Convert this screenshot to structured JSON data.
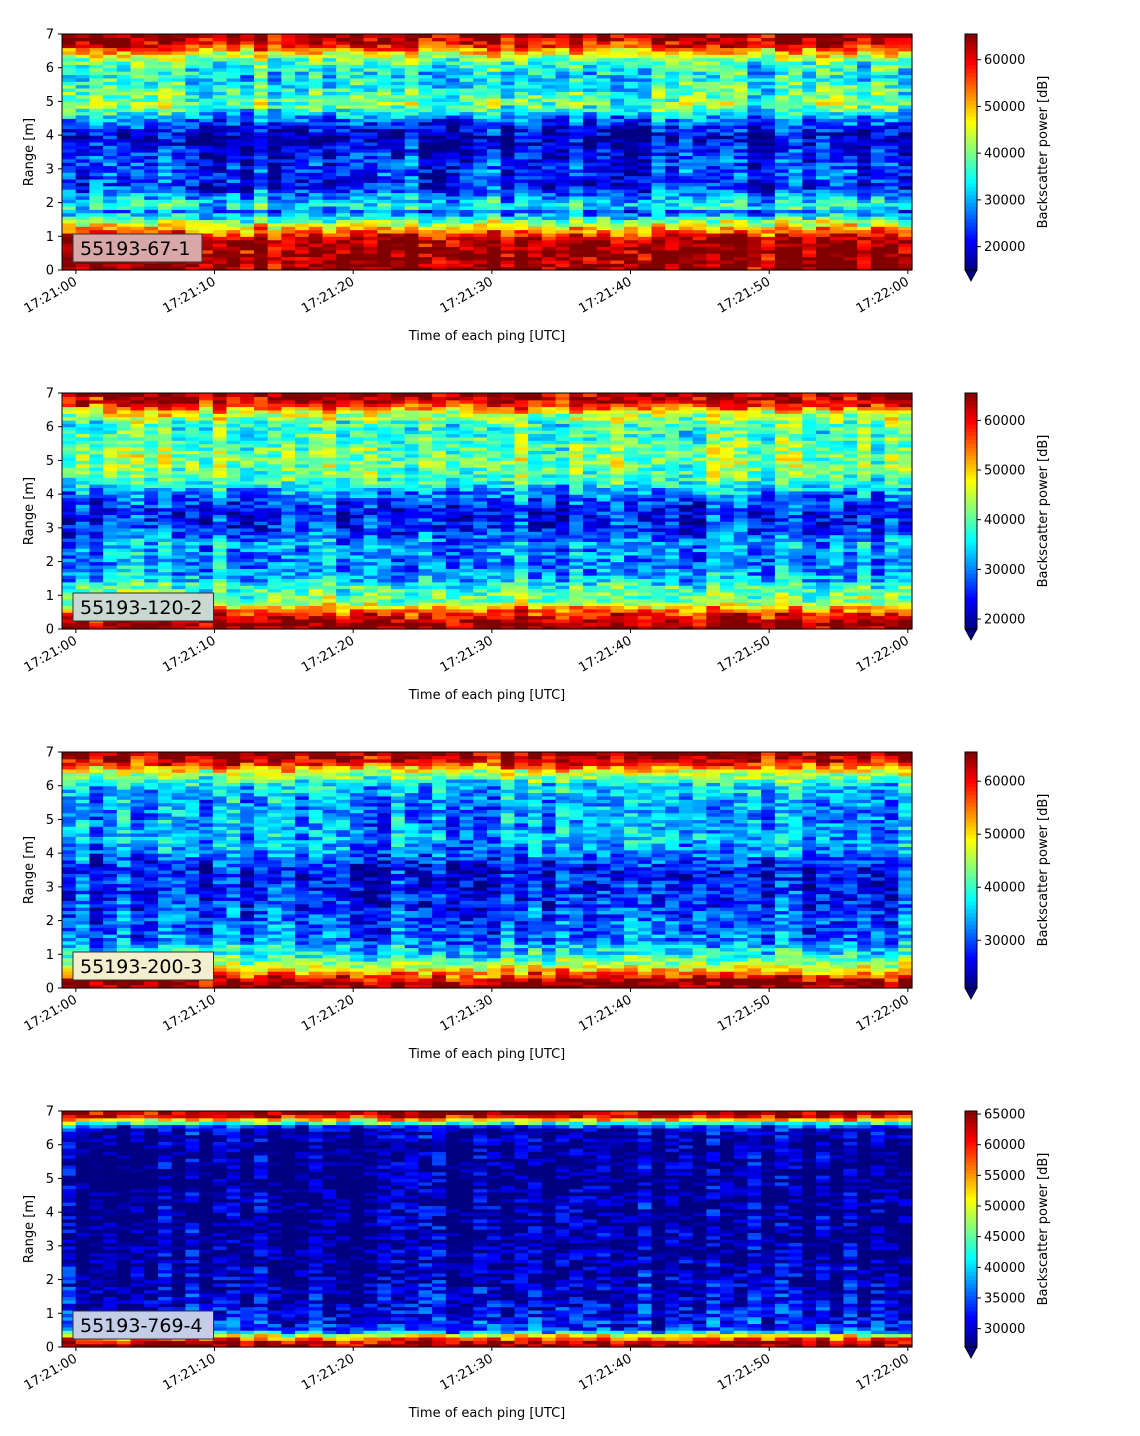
{
  "figure": {
    "xlabel": "Time of each ping [UTC]",
    "ylabel": "Range [m]",
    "colorbar_label": "Backscatter power [dB]"
  },
  "chart_data": [
    {
      "type": "heatmap",
      "label": "55193-67-1",
      "label_color": "#d8a8a8",
      "x_ticks": [
        "17:21:00",
        "17:21:10",
        "17:21:20",
        "17:21:30",
        "17:21:40",
        "17:21:50",
        "17:22:00"
      ],
      "y_ticks": [
        "0",
        "1",
        "2",
        "3",
        "4",
        "5",
        "6",
        "7"
      ],
      "xlim": [
        "17:20:59",
        "17:22:00.3"
      ],
      "ylim": [
        0,
        7
      ],
      "colorbar_ticks": [
        "20000",
        "30000",
        "40000",
        "50000",
        "60000"
      ],
      "clim": [
        15000,
        65500
      ],
      "colormap": "jet",
      "profile": [
        {
          "range": 0.2,
          "value": 65000
        },
        {
          "range": 0.9,
          "value": 64000
        },
        {
          "range": 1.2,
          "value": 52000
        },
        {
          "range": 1.5,
          "value": 38000
        },
        {
          "range": 1.75,
          "value": 26000
        },
        {
          "range": 1.9,
          "value": 36000
        },
        {
          "range": 2.1,
          "value": 30000
        },
        {
          "range": 2.5,
          "value": 22000
        },
        {
          "range": 3.0,
          "value": 24000
        },
        {
          "range": 3.5,
          "value": 21000
        },
        {
          "range": 4.0,
          "value": 18000
        },
        {
          "range": 4.4,
          "value": 25000
        },
        {
          "range": 4.9,
          "value": 40000
        },
        {
          "range": 5.3,
          "value": 36000
        },
        {
          "range": 5.8,
          "value": 33000
        },
        {
          "range": 6.2,
          "value": 38000
        },
        {
          "range": 6.5,
          "value": 50000
        },
        {
          "range": 6.7,
          "value": 60000
        },
        {
          "range": 7.0,
          "value": 65000
        }
      ]
    },
    {
      "type": "heatmap",
      "label": "55193-120-2",
      "label_color": "#c9d8d0",
      "x_ticks": [
        "17:21:00",
        "17:21:10",
        "17:21:20",
        "17:21:30",
        "17:21:40",
        "17:21:50",
        "17:22:00"
      ],
      "y_ticks": [
        "0",
        "1",
        "2",
        "3",
        "4",
        "5",
        "6",
        "7"
      ],
      "xlim": [
        "17:20:59",
        "17:22:00.3"
      ],
      "ylim": [
        0,
        7
      ],
      "colorbar_ticks": [
        "20000",
        "30000",
        "40000",
        "50000",
        "60000"
      ],
      "clim": [
        18000,
        65500
      ],
      "colormap": "jet",
      "profile": [
        {
          "range": 0.2,
          "value": 65000
        },
        {
          "range": 0.5,
          "value": 58000
        },
        {
          "range": 0.8,
          "value": 42000
        },
        {
          "range": 1.2,
          "value": 40000
        },
        {
          "range": 1.5,
          "value": 33000
        },
        {
          "range": 2.0,
          "value": 30000
        },
        {
          "range": 2.5,
          "value": 32000
        },
        {
          "range": 3.0,
          "value": 26000
        },
        {
          "range": 3.5,
          "value": 24000
        },
        {
          "range": 4.0,
          "value": 30000
        },
        {
          "range": 4.5,
          "value": 40000
        },
        {
          "range": 5.0,
          "value": 42000
        },
        {
          "range": 5.5,
          "value": 40000
        },
        {
          "range": 6.0,
          "value": 38000
        },
        {
          "range": 6.4,
          "value": 46000
        },
        {
          "range": 6.7,
          "value": 60000
        },
        {
          "range": 7.0,
          "value": 65000
        }
      ]
    },
    {
      "type": "heatmap",
      "label": "55193-200-3",
      "label_color": "#f2efcf",
      "x_ticks": [
        "17:21:00",
        "17:21:10",
        "17:21:20",
        "17:21:30",
        "17:21:40",
        "17:21:50",
        "17:22:00"
      ],
      "y_ticks": [
        "0",
        "1",
        "2",
        "3",
        "4",
        "5",
        "6",
        "7"
      ],
      "xlim": [
        "17:20:59",
        "17:22:00.3"
      ],
      "ylim": [
        0,
        7
      ],
      "colorbar_ticks": [
        "30000",
        "40000",
        "50000",
        "60000"
      ],
      "clim": [
        21000,
        65500
      ],
      "colormap": "jet",
      "profile": [
        {
          "range": 0.2,
          "value": 65000
        },
        {
          "range": 0.4,
          "value": 56000
        },
        {
          "range": 0.7,
          "value": 46000
        },
        {
          "range": 1.0,
          "value": 38000
        },
        {
          "range": 1.5,
          "value": 31000
        },
        {
          "range": 2.0,
          "value": 30000
        },
        {
          "range": 2.5,
          "value": 28000
        },
        {
          "range": 3.0,
          "value": 27000
        },
        {
          "range": 3.5,
          "value": 26000
        },
        {
          "range": 4.0,
          "value": 32000
        },
        {
          "range": 4.5,
          "value": 34000
        },
        {
          "range": 5.0,
          "value": 33000
        },
        {
          "range": 5.5,
          "value": 33000
        },
        {
          "range": 6.0,
          "value": 36000
        },
        {
          "range": 6.4,
          "value": 46000
        },
        {
          "range": 6.7,
          "value": 60000
        },
        {
          "range": 7.0,
          "value": 65000
        }
      ]
    },
    {
      "type": "heatmap",
      "label": "55193-769-4",
      "label_color": "#c4cde8",
      "x_ticks": [
        "17:21:00",
        "17:21:10",
        "17:21:20",
        "17:21:30",
        "17:21:40",
        "17:21:50",
        "17:22:00"
      ],
      "y_ticks": [
        "0",
        "1",
        "2",
        "3",
        "4",
        "5",
        "6",
        "7"
      ],
      "xlim": [
        "17:20:59",
        "17:22:00.3"
      ],
      "ylim": [
        0,
        7
      ],
      "colorbar_ticks": [
        "30000",
        "35000",
        "40000",
        "45000",
        "50000",
        "55000",
        "60000",
        "65000"
      ],
      "clim": [
        27000,
        65500
      ],
      "colormap": "jet",
      "profile": [
        {
          "range": 0.1,
          "value": 65000
        },
        {
          "range": 0.3,
          "value": 55000
        },
        {
          "range": 0.5,
          "value": 34000
        },
        {
          "range": 1.0,
          "value": 31000
        },
        {
          "range": 1.5,
          "value": 30000
        },
        {
          "range": 2.0,
          "value": 29000
        },
        {
          "range": 3.0,
          "value": 28000
        },
        {
          "range": 4.0,
          "value": 28000
        },
        {
          "range": 5.0,
          "value": 27500
        },
        {
          "range": 6.0,
          "value": 27500
        },
        {
          "range": 6.5,
          "value": 30000
        },
        {
          "range": 6.7,
          "value": 48000
        },
        {
          "range": 6.85,
          "value": 62000
        },
        {
          "range": 7.0,
          "value": 65000
        }
      ]
    }
  ]
}
